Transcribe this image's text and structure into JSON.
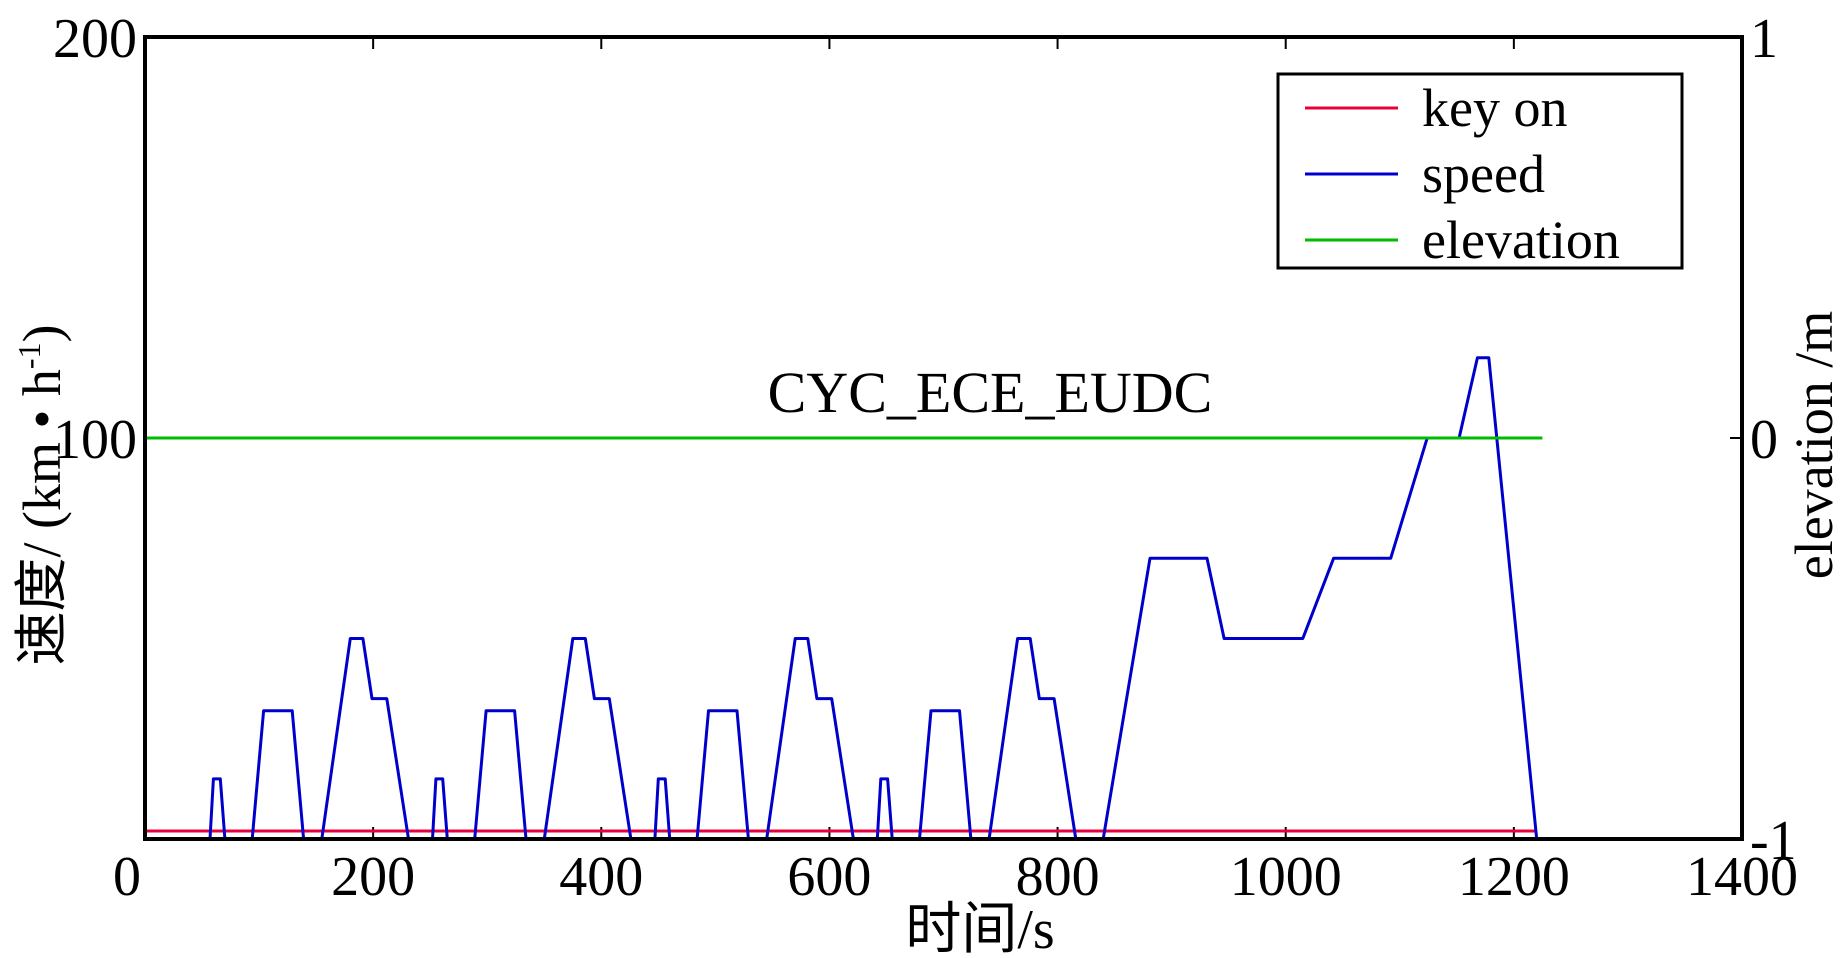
{
  "chart_data": {
    "type": "line",
    "title": "CYC_ECE_EUDC",
    "xlabel": "时间/s",
    "ylabel": "速度/ (km • h",
    "ylabel_sup": "-1",
    "ylabel_close": ")",
    "y2label": "elevation /m",
    "xlim": [
      0,
      1400
    ],
    "ylim": [
      0,
      200
    ],
    "y2lim": [
      -1,
      1
    ],
    "x_ticks": [
      0,
      200,
      400,
      600,
      800,
      1000,
      1200,
      1400
    ],
    "y_ticks": [
      0,
      100,
      200
    ],
    "y2_ticks": [
      -1,
      0,
      1
    ],
    "legend_position": "top-right",
    "series": [
      {
        "name": "key on",
        "color": "#e8003d",
        "axis": "left",
        "points": [
          [
            0,
            2
          ],
          [
            1220,
            2
          ]
        ]
      },
      {
        "name": "speed",
        "color": "#0000cc",
        "axis": "left",
        "points": [
          [
            0,
            0
          ],
          [
            57,
            0
          ],
          [
            60,
            15
          ],
          [
            66,
            15
          ],
          [
            70,
            0
          ],
          [
            94,
            0
          ],
          [
            104,
            32
          ],
          [
            129,
            32
          ],
          [
            139,
            0
          ],
          [
            155,
            0
          ],
          [
            180,
            50
          ],
          [
            191,
            50
          ],
          [
            199,
            35
          ],
          [
            212,
            35
          ],
          [
            231,
            0
          ],
          [
            252,
            0
          ],
          [
            255,
            15
          ],
          [
            261,
            15
          ],
          [
            265,
            0
          ],
          [
            289,
            0
          ],
          [
            299,
            32
          ],
          [
            324,
            32
          ],
          [
            334,
            0
          ],
          [
            350,
            0
          ],
          [
            375,
            50
          ],
          [
            386,
            50
          ],
          [
            394,
            35
          ],
          [
            407,
            35
          ],
          [
            426,
            0
          ],
          [
            447,
            0
          ],
          [
            450,
            15
          ],
          [
            456,
            15
          ],
          [
            460,
            0
          ],
          [
            484,
            0
          ],
          [
            494,
            32
          ],
          [
            519,
            32
          ],
          [
            529,
            0
          ],
          [
            545,
            0
          ],
          [
            570,
            50
          ],
          [
            581,
            50
          ],
          [
            589,
            35
          ],
          [
            602,
            35
          ],
          [
            621,
            0
          ],
          [
            642,
            0
          ],
          [
            645,
            15
          ],
          [
            651,
            15
          ],
          [
            655,
            0
          ],
          [
            679,
            0
          ],
          [
            689,
            32
          ],
          [
            714,
            32
          ],
          [
            724,
            0
          ],
          [
            740,
            0
          ],
          [
            765,
            50
          ],
          [
            776,
            50
          ],
          [
            784,
            35
          ],
          [
            797,
            35
          ],
          [
            816,
            0
          ],
          [
            840,
            0
          ],
          [
            881,
            70
          ],
          [
            931,
            70
          ],
          [
            946,
            50
          ],
          [
            1015,
            50
          ],
          [
            1042,
            70
          ],
          [
            1092,
            70
          ],
          [
            1124,
            100
          ],
          [
            1152,
            100
          ],
          [
            1168,
            120
          ],
          [
            1178,
            120
          ],
          [
            1220,
            0
          ],
          [
            1225,
            0
          ]
        ]
      },
      {
        "name": "elevation",
        "color": "#00bb00",
        "axis": "right",
        "points": [
          [
            0,
            0
          ],
          [
            1225,
            0
          ]
        ]
      }
    ]
  }
}
